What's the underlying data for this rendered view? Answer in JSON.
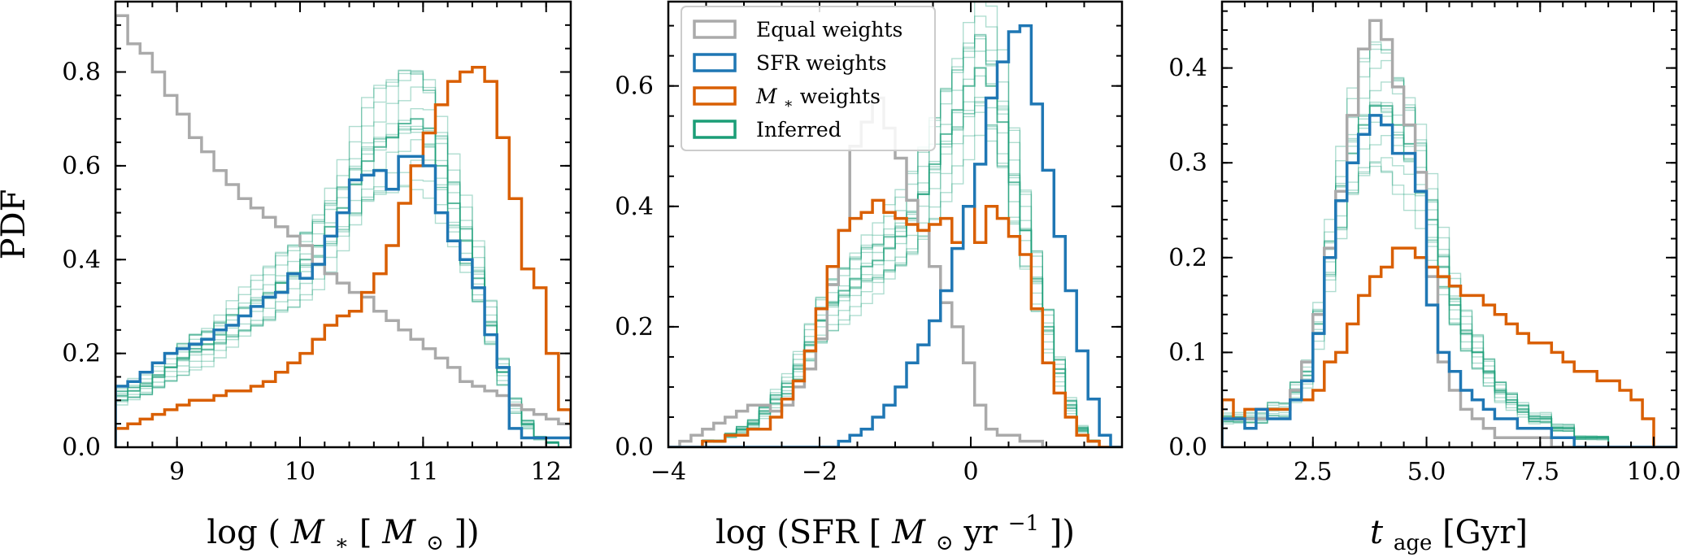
{
  "chart_data": [
    {
      "type": "histogram-step",
      "ylabel": "PDF",
      "xlabel_parts": [
        "log",
        "(",
        "M",
        "∗",
        " [",
        "M",
        "⊙",
        "])"
      ],
      "xlim": [
        8.5,
        12.2
      ],
      "ylim": [
        0,
        0.95
      ],
      "xticks": [
        9,
        10,
        11,
        12
      ],
      "yticks": [
        0.0,
        0.2,
        0.4,
        0.6,
        0.8
      ],
      "ytick_labels": [
        "0.0",
        "0.2",
        "0.4",
        "0.6",
        "0.8"
      ],
      "xtick_labels": [
        "9",
        "10",
        "11",
        "12"
      ],
      "bins": {
        "start": 8.5,
        "width": 0.1
      },
      "series": [
        {
          "key": "equal",
          "values": [
            0.92,
            0.86,
            0.84,
            0.8,
            0.75,
            0.71,
            0.66,
            0.63,
            0.59,
            0.56,
            0.53,
            0.51,
            0.49,
            0.47,
            0.45,
            0.43,
            0.39,
            0.37,
            0.35,
            0.33,
            0.32,
            0.29,
            0.27,
            0.25,
            0.23,
            0.21,
            0.19,
            0.17,
            0.14,
            0.13,
            0.12,
            0.11,
            0.09,
            0.08,
            0.07,
            0.06,
            0.05,
            0.04,
            0.03
          ]
        },
        {
          "key": "sfr",
          "values": [
            0.13,
            0.14,
            0.16,
            0.18,
            0.2,
            0.21,
            0.22,
            0.23,
            0.25,
            0.26,
            0.28,
            0.3,
            0.32,
            0.33,
            0.37,
            0.36,
            0.39,
            0.45,
            0.5,
            0.57,
            0.58,
            0.59,
            0.55,
            0.62,
            0.62,
            0.6,
            0.5,
            0.44,
            0.4,
            0.34,
            0.24,
            0.17,
            0.04,
            0.02,
            0.02,
            0.02,
            0.02,
            0.01,
            0.0
          ]
        },
        {
          "key": "mstar",
          "values": [
            0.04,
            0.05,
            0.06,
            0.07,
            0.08,
            0.09,
            0.1,
            0.1,
            0.11,
            0.12,
            0.12,
            0.13,
            0.14,
            0.16,
            0.18,
            0.2,
            0.23,
            0.26,
            0.28,
            0.29,
            0.33,
            0.37,
            0.43,
            0.52,
            0.6,
            0.67,
            0.73,
            0.78,
            0.8,
            0.81,
            0.78,
            0.66,
            0.53,
            0.38,
            0.34,
            0.2,
            0.08,
            0.05,
            0.04
          ]
        },
        {
          "key": "inferred",
          "values": [
            0.11,
            0.12,
            0.13,
            0.15,
            0.17,
            0.19,
            0.21,
            0.22,
            0.24,
            0.26,
            0.28,
            0.3,
            0.32,
            0.35,
            0.37,
            0.4,
            0.43,
            0.47,
            0.51,
            0.56,
            0.61,
            0.64,
            0.66,
            0.69,
            0.7,
            0.68,
            0.6,
            0.52,
            0.44,
            0.36,
            0.26,
            0.16,
            0.09,
            0.05,
            0.02,
            0.01,
            0.0,
            0.0,
            0.0
          ]
        }
      ]
    },
    {
      "type": "histogram-step",
      "xlabel_parts": [
        "log",
        "(SFR",
        " [",
        "M",
        "⊙",
        "yr",
        "−1",
        "])"
      ],
      "xlim": [
        -4.0,
        2.0
      ],
      "ylim": [
        0,
        0.74
      ],
      "xticks": [
        -4,
        -2,
        0
      ],
      "xtick_labels": [
        "−4",
        "−2",
        "0"
      ],
      "yticks": [
        0.0,
        0.2,
        0.4,
        0.6
      ],
      "ytick_labels": [
        "0.0",
        "0.2",
        "0.4",
        "0.6"
      ],
      "bins": {
        "start": -4.0,
        "width": 0.15
      },
      "series": [
        {
          "key": "equal",
          "values": [
            0.0,
            0.01,
            0.02,
            0.03,
            0.04,
            0.05,
            0.06,
            0.07,
            0.07,
            0.06,
            0.07,
            0.1,
            0.13,
            0.18,
            0.27,
            0.36,
            0.5,
            0.54,
            0.58,
            0.53,
            0.48,
            0.41,
            0.36,
            0.3,
            0.24,
            0.2,
            0.14,
            0.07,
            0.03,
            0.02,
            0.02,
            0.01,
            0.01,
            0.0,
            0.0,
            0.0,
            0.0,
            0.0,
            0.0,
            0.0
          ]
        },
        {
          "key": "sfr",
          "values": [
            0.0,
            0.0,
            0.0,
            0.0,
            0.0,
            0.0,
            0.0,
            0.0,
            0.0,
            0.0,
            0.0,
            0.0,
            0.0,
            0.0,
            0.0,
            0.01,
            0.02,
            0.03,
            0.05,
            0.07,
            0.1,
            0.14,
            0.17,
            0.21,
            0.26,
            0.33,
            0.4,
            0.47,
            0.58,
            0.64,
            0.69,
            0.7,
            0.57,
            0.46,
            0.35,
            0.26,
            0.16,
            0.08,
            0.02,
            0.0
          ]
        },
        {
          "key": "mstar",
          "values": [
            0.0,
            0.0,
            0.0,
            0.01,
            0.01,
            0.02,
            0.02,
            0.03,
            0.03,
            0.05,
            0.08,
            0.11,
            0.16,
            0.23,
            0.3,
            0.36,
            0.38,
            0.39,
            0.41,
            0.39,
            0.38,
            0.37,
            0.36,
            0.37,
            0.38,
            0.34,
            0.4,
            0.34,
            0.4,
            0.38,
            0.35,
            0.32,
            0.23,
            0.14,
            0.09,
            0.05,
            0.02,
            0.01,
            0.0,
            0.0
          ]
        },
        {
          "key": "inferred",
          "values": [
            0.0,
            0.0,
            0.0,
            0.01,
            0.01,
            0.02,
            0.03,
            0.04,
            0.06,
            0.08,
            0.1,
            0.13,
            0.17,
            0.21,
            0.24,
            0.26,
            0.28,
            0.3,
            0.31,
            0.33,
            0.35,
            0.38,
            0.42,
            0.47,
            0.52,
            0.56,
            0.6,
            0.63,
            0.6,
            0.54,
            0.44,
            0.36,
            0.28,
            0.2,
            0.13,
            0.07,
            0.03,
            0.01,
            0.0,
            0.0
          ]
        }
      ]
    },
    {
      "type": "histogram-step",
      "xlabel_parts": [
        "t",
        "age",
        " [Gyr]"
      ],
      "xlim": [
        0.5,
        10.5
      ],
      "ylim": [
        0,
        0.47
      ],
      "xticks": [
        2.5,
        5.0,
        7.5,
        10.0
      ],
      "xtick_labels": [
        "2.5",
        "5.0",
        "7.5",
        "10.0"
      ],
      "yticks": [
        0.0,
        0.1,
        0.2,
        0.3,
        0.4
      ],
      "ytick_labels": [
        "0.0",
        "0.1",
        "0.2",
        "0.3",
        "0.4"
      ],
      "bins": {
        "start": 0.5,
        "width": 0.25
      },
      "series": [
        {
          "key": "equal",
          "values": [
            0.03,
            0.03,
            0.03,
            0.03,
            0.04,
            0.04,
            0.06,
            0.09,
            0.14,
            0.21,
            0.27,
            0.35,
            0.42,
            0.45,
            0.43,
            0.38,
            0.34,
            0.29,
            0.18,
            0.09,
            0.06,
            0.04,
            0.03,
            0.02,
            0.01,
            0.01,
            0.01,
            0.01,
            0.01,
            0.0,
            0.0,
            0.0,
            0.0,
            0.0,
            0.0,
            0.0,
            0.0,
            0.0,
            0.0,
            0.0
          ]
        },
        {
          "key": "sfr",
          "values": [
            0.03,
            0.03,
            0.02,
            0.04,
            0.03,
            0.03,
            0.05,
            0.07,
            0.12,
            0.2,
            0.26,
            0.3,
            0.33,
            0.35,
            0.34,
            0.31,
            0.31,
            0.27,
            0.15,
            0.1,
            0.08,
            0.06,
            0.05,
            0.04,
            0.03,
            0.03,
            0.02,
            0.02,
            0.02,
            0.01,
            0.01,
            0.0,
            0.0,
            0.0,
            0.0,
            0.0,
            0.0,
            0.0,
            0.0,
            0.0
          ]
        },
        {
          "key": "mstar",
          "values": [
            0.05,
            0.03,
            0.04,
            0.04,
            0.04,
            0.04,
            0.05,
            0.05,
            0.06,
            0.09,
            0.1,
            0.13,
            0.16,
            0.18,
            0.19,
            0.21,
            0.21,
            0.2,
            0.19,
            0.18,
            0.17,
            0.16,
            0.16,
            0.15,
            0.14,
            0.13,
            0.12,
            0.11,
            0.11,
            0.1,
            0.09,
            0.08,
            0.08,
            0.07,
            0.07,
            0.06,
            0.05,
            0.03,
            0.0,
            0.0
          ]
        },
        {
          "key": "inferred",
          "values": [
            0.03,
            0.03,
            0.03,
            0.03,
            0.04,
            0.04,
            0.06,
            0.08,
            0.13,
            0.2,
            0.26,
            0.31,
            0.34,
            0.36,
            0.36,
            0.34,
            0.32,
            0.29,
            0.24,
            0.19,
            0.15,
            0.12,
            0.1,
            0.08,
            0.06,
            0.05,
            0.04,
            0.03,
            0.03,
            0.02,
            0.02,
            0.01,
            0.01,
            0.01,
            0.0,
            0.0,
            0.0,
            0.0,
            0.0,
            0.0
          ]
        }
      ]
    }
  ],
  "legend": {
    "placement": "top-left of middle panel",
    "items": [
      {
        "key": "equal",
        "label": "Equal weights",
        "color": "#aaaaaa"
      },
      {
        "key": "sfr",
        "label": "SFR weights",
        "color": "#1f77b4"
      },
      {
        "key": "mstar",
        "label_parts": [
          "M",
          "∗",
          " weights"
        ],
        "color": "#d95f02"
      },
      {
        "key": "inferred",
        "label": "Inferred",
        "color": "#1b9e77"
      }
    ]
  }
}
